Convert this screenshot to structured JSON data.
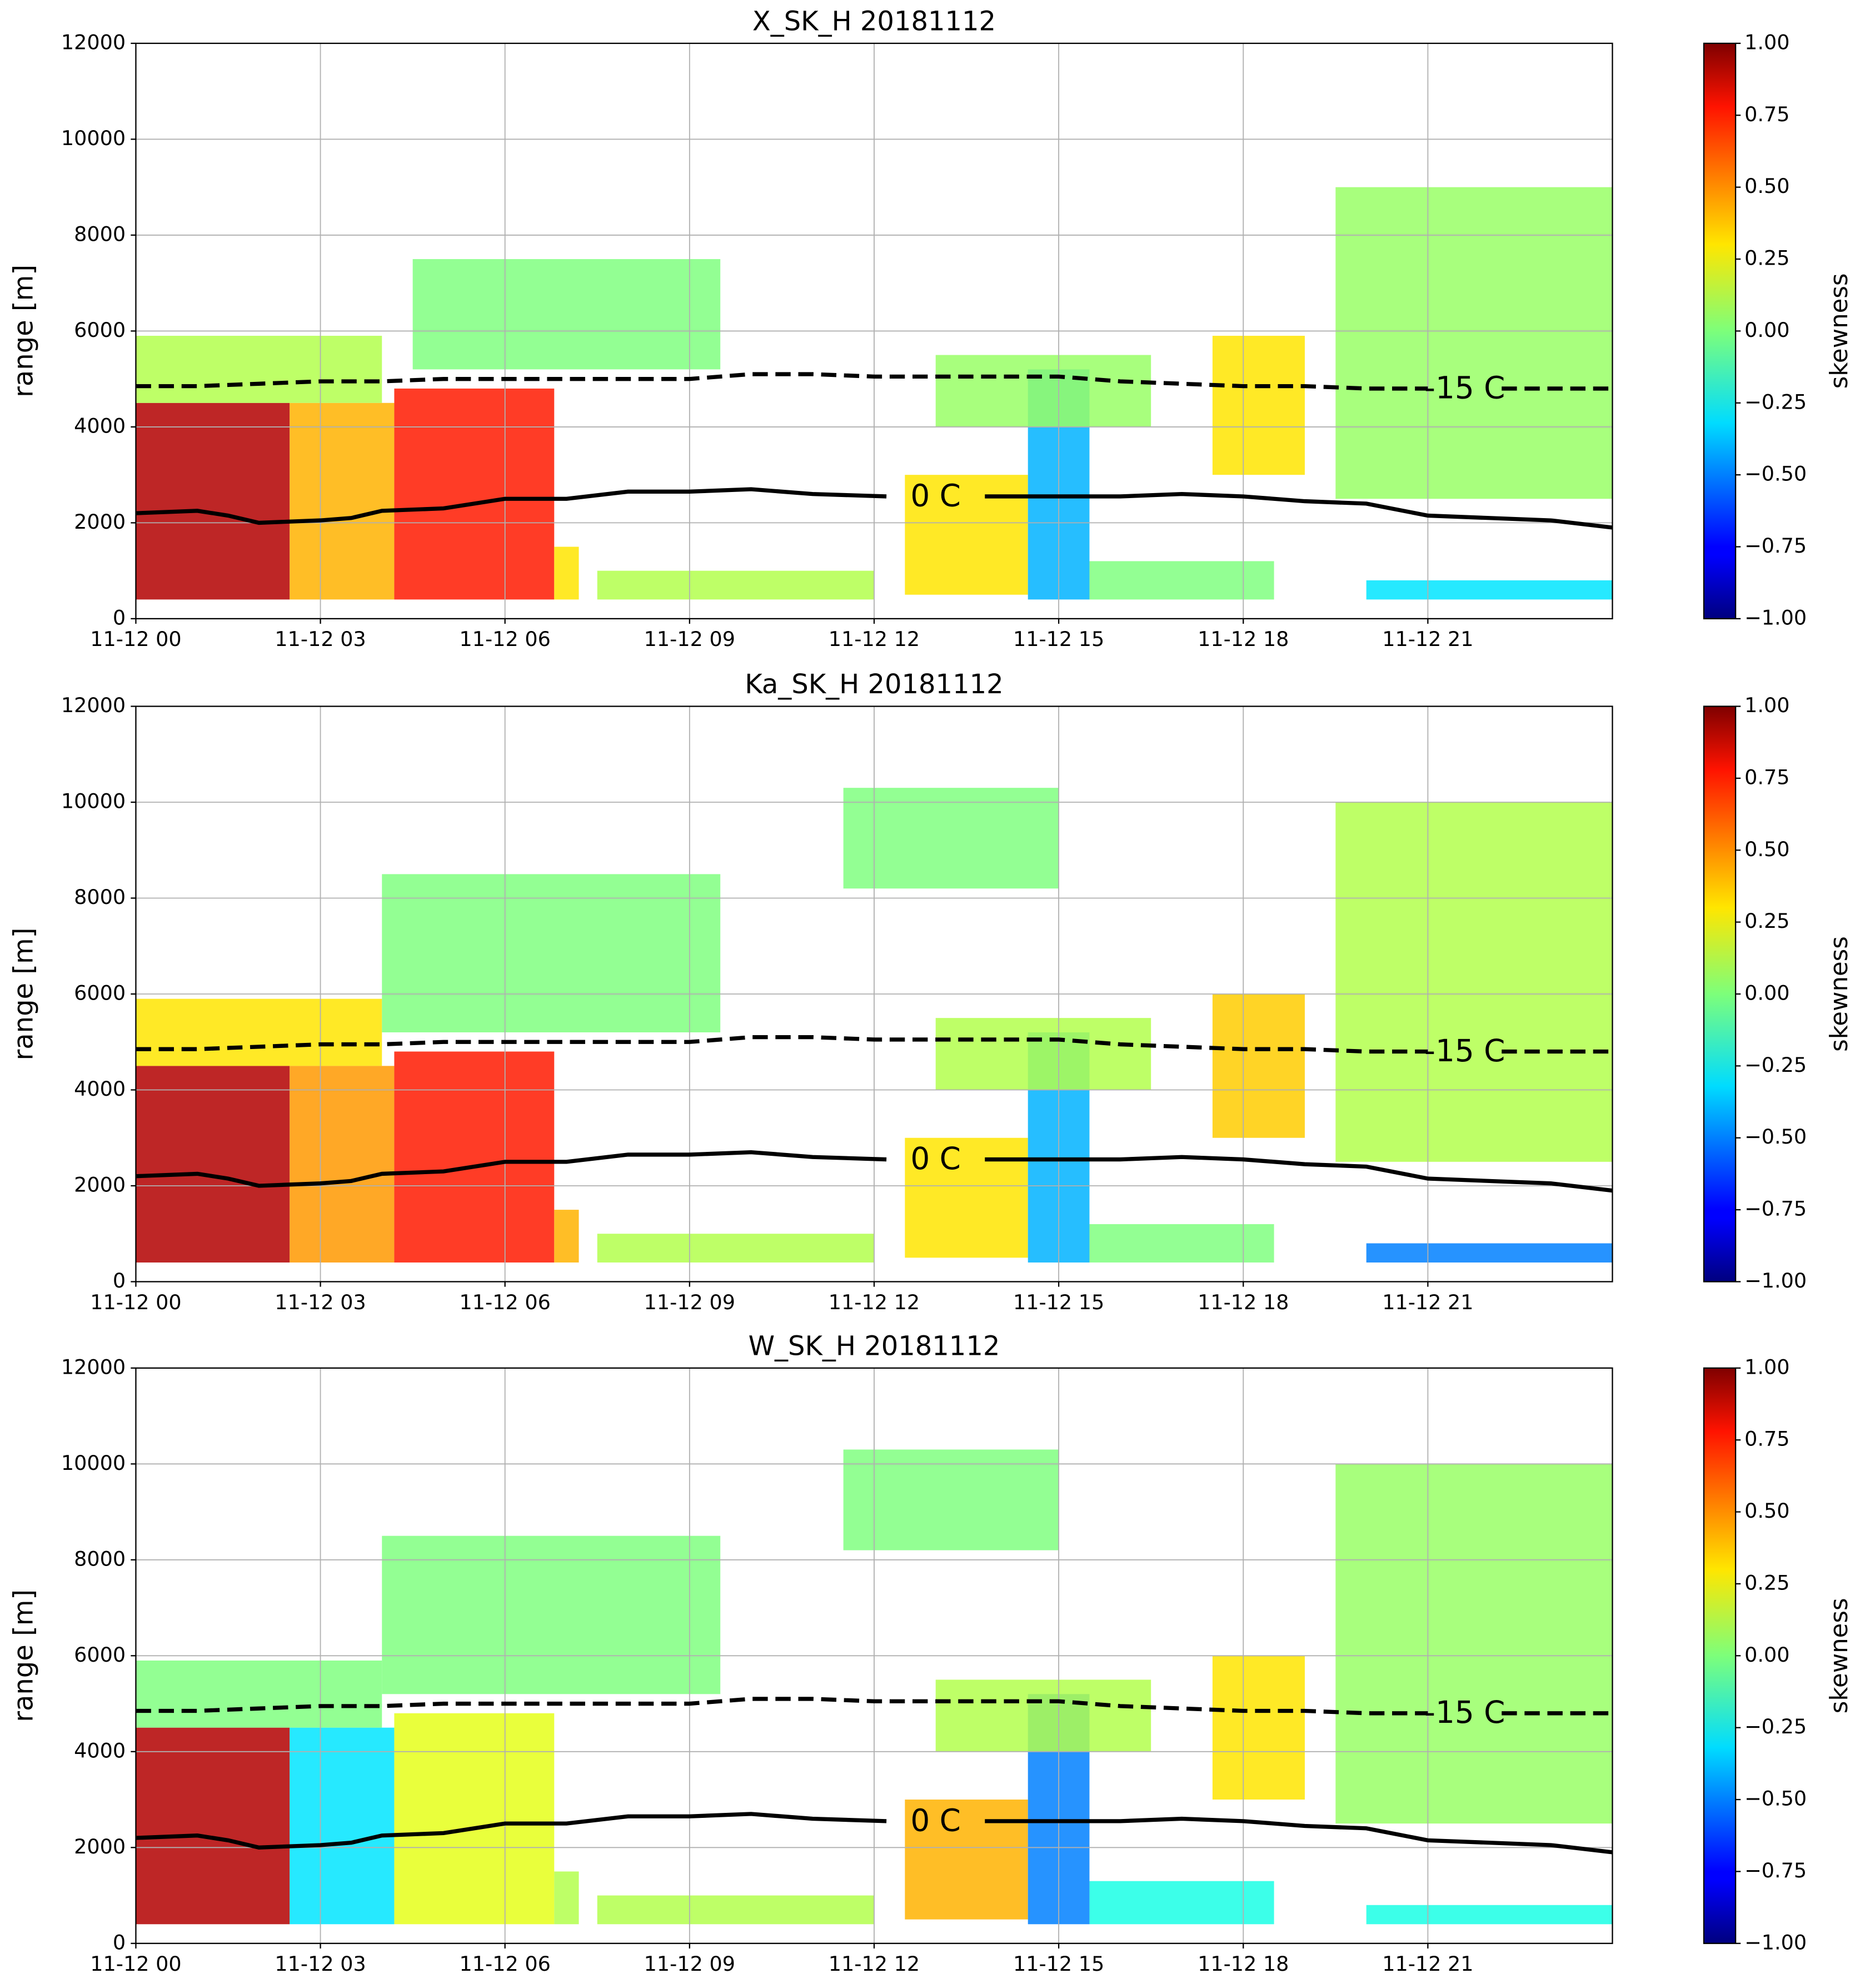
{
  "chart_data": [
    {
      "type": "heatmap",
      "title": "X_SK_H 20181112",
      "ylabel": "range [m]",
      "colorbar_label": "skewness",
      "colormap": "jet",
      "grid": true,
      "xlim": [
        0,
        24
      ],
      "xticks": [
        {
          "value": 0,
          "label": "11-12 00"
        },
        {
          "value": 3,
          "label": "11-12 03"
        },
        {
          "value": 6,
          "label": "11-12 06"
        },
        {
          "value": 9,
          "label": "11-12 09"
        },
        {
          "value": 12,
          "label": "11-12 12"
        },
        {
          "value": 15,
          "label": "11-12 15"
        },
        {
          "value": 18,
          "label": "11-12 18"
        },
        {
          "value": 21,
          "label": "11-12 21"
        }
      ],
      "ylim": [
        0,
        12000
      ],
      "yticks": [
        0,
        2000,
        4000,
        6000,
        8000,
        10000,
        12000
      ],
      "clim": [
        -1,
        1
      ],
      "cticks": [
        {
          "value": 1,
          "label": "1.00"
        },
        {
          "value": 0.75,
          "label": "0.75"
        },
        {
          "value": 0.5,
          "label": "0.50"
        },
        {
          "value": 0.25,
          "label": "0.25"
        },
        {
          "value": 0,
          "label": "0.00"
        },
        {
          "value": -0.25,
          "label": "−0.25"
        },
        {
          "value": -0.5,
          "label": "−0.50"
        },
        {
          "value": -0.75,
          "label": "−0.75"
        },
        {
          "value": -1,
          "label": "−1.00"
        }
      ],
      "cells": [
        [
          0,
          2.5,
          400,
          4500,
          0.9
        ],
        [
          2.5,
          4.2,
          400,
          4500,
          0.4
        ],
        [
          4.2,
          6.8,
          400,
          4800,
          0.7
        ],
        [
          6.8,
          7.2,
          400,
          1500,
          0.3
        ],
        [
          0,
          4,
          4500,
          5900,
          0.1
        ],
        [
          4.5,
          9.5,
          5200,
          7500,
          0
        ],
        [
          7.5,
          12,
          400,
          1000,
          0.1
        ],
        [
          12.5,
          14.5,
          500,
          3000,
          0.3
        ],
        [
          14.5,
          15.5,
          400,
          5200,
          -0.4
        ],
        [
          15.5,
          18.5,
          400,
          1200,
          0
        ],
        [
          17.5,
          19,
          3000,
          5900,
          0.3
        ],
        [
          19.5,
          24,
          2500,
          9000,
          0.05
        ],
        [
          13,
          16.5,
          4000,
          5500,
          0.05
        ],
        [
          20,
          24,
          400,
          800,
          -0.3
        ]
      ],
      "isotherms": [
        {
          "name": "0 C",
          "style": "solid",
          "x": [
            0,
            1,
            1.5,
            2,
            3,
            3.5,
            4,
            5,
            6,
            7,
            8,
            9,
            10,
            11,
            12.2,
            13,
            13.8,
            15,
            16,
            17,
            18,
            19,
            20,
            21,
            22,
            23,
            24
          ],
          "values": [
            2200,
            2250,
            2150,
            2000,
            2050,
            2100,
            2250,
            2300,
            2500,
            2500,
            2650,
            2650,
            2700,
            2600,
            2550,
            null,
            2550,
            2550,
            2550,
            2600,
            2550,
            2450,
            2400,
            2150,
            2100,
            2050,
            1900
          ]
        },
        {
          "name": "-15 C",
          "style": "dashed",
          "x": [
            0,
            1,
            2,
            3,
            4,
            5,
            6,
            7,
            8,
            9,
            9.5,
            10,
            11,
            12,
            13,
            14,
            15,
            16,
            17,
            18,
            19,
            20,
            21,
            21.6,
            22.2,
            24
          ],
          "values": [
            4850,
            4850,
            4900,
            4950,
            4950,
            5000,
            5000,
            5000,
            5000,
            5000,
            5050,
            5100,
            5100,
            5050,
            5050,
            5050,
            5050,
            4950,
            4900,
            4850,
            4850,
            4800,
            4800,
            null,
            4800,
            4800
          ]
        }
      ]
    },
    {
      "type": "heatmap",
      "title": "Ka_SK_H 20181112",
      "ylabel": "range [m]",
      "colorbar_label": "skewness",
      "colormap": "jet",
      "grid": true,
      "xlim": [
        0,
        24
      ],
      "xticks": [
        {
          "value": 0,
          "label": "11-12 00"
        },
        {
          "value": 3,
          "label": "11-12 03"
        },
        {
          "value": 6,
          "label": "11-12 06"
        },
        {
          "value": 9,
          "label": "11-12 09"
        },
        {
          "value": 12,
          "label": "11-12 12"
        },
        {
          "value": 15,
          "label": "11-12 15"
        },
        {
          "value": 18,
          "label": "11-12 18"
        },
        {
          "value": 21,
          "label": "11-12 21"
        }
      ],
      "ylim": [
        0,
        12000
      ],
      "yticks": [
        0,
        2000,
        4000,
        6000,
        8000,
        10000,
        12000
      ],
      "clim": [
        -1,
        1
      ],
      "cticks": [
        {
          "value": 1,
          "label": "1.00"
        },
        {
          "value": 0.75,
          "label": "0.75"
        },
        {
          "value": 0.5,
          "label": "0.50"
        },
        {
          "value": 0.25,
          "label": "0.25"
        },
        {
          "value": 0,
          "label": "0.00"
        },
        {
          "value": -0.25,
          "label": "−0.25"
        },
        {
          "value": -0.5,
          "label": "−0.50"
        },
        {
          "value": -0.75,
          "label": "−0.75"
        },
        {
          "value": -1,
          "label": "−1.00"
        }
      ],
      "cells": [
        [
          0,
          2.5,
          400,
          4500,
          0.9
        ],
        [
          2.5,
          4.2,
          400,
          4500,
          0.45
        ],
        [
          4.2,
          6.8,
          400,
          4800,
          0.7
        ],
        [
          6.8,
          7.2,
          400,
          1500,
          0.4
        ],
        [
          0,
          4,
          4500,
          5900,
          0.3
        ],
        [
          4,
          9.5,
          5200,
          8500,
          0
        ],
        [
          7.5,
          12,
          400,
          1000,
          0.1
        ],
        [
          12.5,
          14.5,
          500,
          3000,
          0.3
        ],
        [
          14.5,
          15.5,
          400,
          5200,
          -0.4
        ],
        [
          15.5,
          18.5,
          400,
          1200,
          0
        ],
        [
          17.5,
          19,
          3000,
          6000,
          0.35
        ],
        [
          19.5,
          24,
          2500,
          10000,
          0.1
        ],
        [
          13,
          16.5,
          4000,
          5500,
          0.1
        ],
        [
          11.5,
          15,
          8200,
          10300,
          0
        ],
        [
          20,
          24,
          400,
          800,
          -0.5
        ]
      ],
      "isotherms": [
        {
          "name": "0 C",
          "style": "solid",
          "x": [
            0,
            1,
            1.5,
            2,
            3,
            3.5,
            4,
            5,
            6,
            7,
            8,
            9,
            10,
            11,
            12.2,
            13,
            13.8,
            15,
            16,
            17,
            18,
            19,
            20,
            21,
            22,
            23,
            24
          ],
          "values": [
            2200,
            2250,
            2150,
            2000,
            2050,
            2100,
            2250,
            2300,
            2500,
            2500,
            2650,
            2650,
            2700,
            2600,
            2550,
            null,
            2550,
            2550,
            2550,
            2600,
            2550,
            2450,
            2400,
            2150,
            2100,
            2050,
            1900
          ]
        },
        {
          "name": "-15 C",
          "style": "dashed",
          "x": [
            0,
            1,
            2,
            3,
            4,
            5,
            6,
            7,
            8,
            9,
            9.5,
            10,
            11,
            12,
            13,
            14,
            15,
            16,
            17,
            18,
            19,
            20,
            21,
            21.6,
            22.2,
            24
          ],
          "values": [
            4850,
            4850,
            4900,
            4950,
            4950,
            5000,
            5000,
            5000,
            5000,
            5000,
            5050,
            5100,
            5100,
            5050,
            5050,
            5050,
            5050,
            4950,
            4900,
            4850,
            4850,
            4800,
            4800,
            null,
            4800,
            4800
          ]
        }
      ]
    },
    {
      "type": "heatmap",
      "title": "W_SK_H 20181112",
      "ylabel": "range [m]",
      "colorbar_label": "skewness",
      "colormap": "jet",
      "grid": true,
      "xlim": [
        0,
        24
      ],
      "xticks": [
        {
          "value": 0,
          "label": "11-12 00"
        },
        {
          "value": 3,
          "label": "11-12 03"
        },
        {
          "value": 6,
          "label": "11-12 06"
        },
        {
          "value": 9,
          "label": "11-12 09"
        },
        {
          "value": 12,
          "label": "11-12 12"
        },
        {
          "value": 15,
          "label": "11-12 15"
        },
        {
          "value": 18,
          "label": "11-12 18"
        },
        {
          "value": 21,
          "label": "11-12 21"
        }
      ],
      "ylim": [
        0,
        12000
      ],
      "yticks": [
        0,
        2000,
        4000,
        6000,
        8000,
        10000,
        12000
      ],
      "clim": [
        -1,
        1
      ],
      "cticks": [
        {
          "value": 1,
          "label": "1.00"
        },
        {
          "value": 0.75,
          "label": "0.75"
        },
        {
          "value": 0.5,
          "label": "0.50"
        },
        {
          "value": 0.25,
          "label": "0.25"
        },
        {
          "value": 0,
          "label": "0.00"
        },
        {
          "value": -0.25,
          "label": "−0.25"
        },
        {
          "value": -0.5,
          "label": "−0.50"
        },
        {
          "value": -0.75,
          "label": "−0.75"
        },
        {
          "value": -1,
          "label": "−1.00"
        }
      ],
      "cells": [
        [
          0,
          2.5,
          400,
          4500,
          0.9
        ],
        [
          2.5,
          4.2,
          400,
          4500,
          -0.3
        ],
        [
          4.2,
          6.8,
          400,
          4800,
          0.2
        ],
        [
          6.8,
          7.2,
          400,
          1500,
          0.1
        ],
        [
          0,
          4,
          4500,
          5900,
          0
        ],
        [
          4,
          9.5,
          5200,
          8500,
          0
        ],
        [
          7.5,
          12,
          400,
          1000,
          0.1
        ],
        [
          12.5,
          14.5,
          500,
          3000,
          0.4
        ],
        [
          14.5,
          15.5,
          400,
          5200,
          -0.5
        ],
        [
          15.5,
          18.5,
          400,
          1300,
          -0.2
        ],
        [
          17.5,
          19,
          3000,
          6000,
          0.3
        ],
        [
          19.5,
          24,
          2500,
          10000,
          0.05
        ],
        [
          13,
          16.5,
          4000,
          5500,
          0.1
        ],
        [
          11.5,
          15,
          8200,
          10300,
          0
        ],
        [
          20,
          24,
          400,
          800,
          -0.2
        ]
      ],
      "isotherms": [
        {
          "name": "0 C",
          "style": "solid",
          "x": [
            0,
            1,
            1.5,
            2,
            3,
            3.5,
            4,
            5,
            6,
            7,
            8,
            9,
            10,
            11,
            12.2,
            13,
            13.8,
            15,
            16,
            17,
            18,
            19,
            20,
            21,
            22,
            23,
            24
          ],
          "values": [
            2200,
            2250,
            2150,
            2000,
            2050,
            2100,
            2250,
            2300,
            2500,
            2500,
            2650,
            2650,
            2700,
            2600,
            2550,
            null,
            2550,
            2550,
            2550,
            2600,
            2550,
            2450,
            2400,
            2150,
            2100,
            2050,
            1900
          ]
        },
        {
          "name": "-15 C",
          "style": "dashed",
          "x": [
            0,
            1,
            2,
            3,
            4,
            5,
            6,
            7,
            8,
            9,
            9.5,
            10,
            11,
            12,
            13,
            14,
            15,
            16,
            17,
            18,
            19,
            20,
            21,
            21.6,
            22.2,
            24
          ],
          "values": [
            4850,
            4850,
            4900,
            4950,
            4950,
            5000,
            5000,
            5000,
            5000,
            5000,
            5050,
            5100,
            5100,
            5050,
            5050,
            5050,
            5050,
            4950,
            4900,
            4850,
            4850,
            4800,
            4800,
            null,
            4800,
            4800
          ]
        }
      ]
    }
  ]
}
